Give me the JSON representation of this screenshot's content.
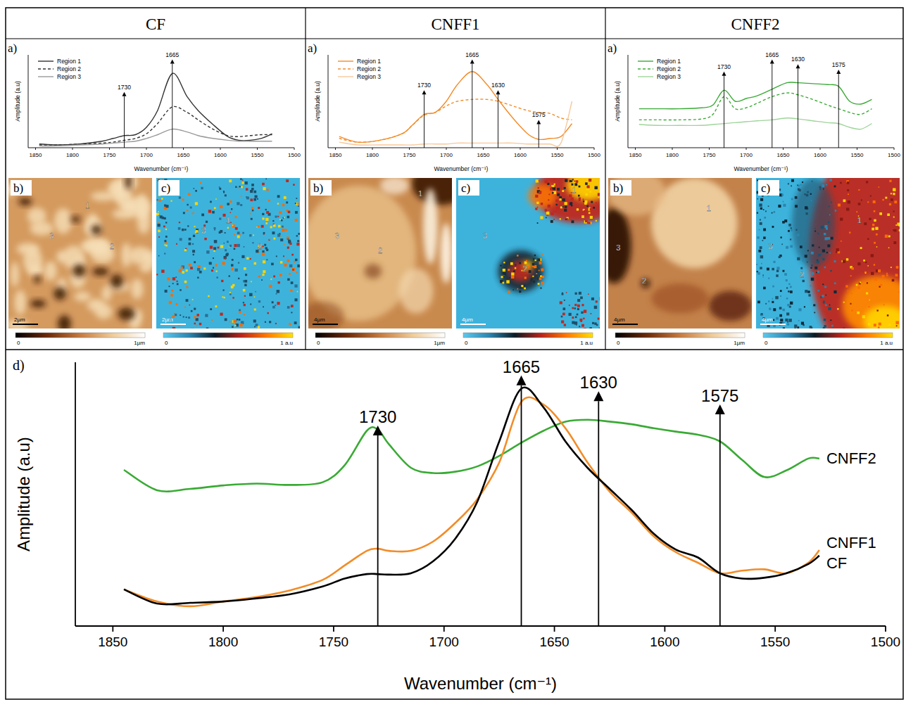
{
  "panels": [
    {
      "title": "CF",
      "height_letter": "b)",
      "ir_letter": "c)",
      "scale_bar": "2µm",
      "height_colorbar": [
        "0",
        "1µm"
      ],
      "ir_colorbar": [
        "0",
        "1 a.u"
      ],
      "region_labels": [
        "1",
        "2",
        "3"
      ]
    },
    {
      "title": "CNFF1",
      "height_letter": "b)",
      "ir_letter": "c)",
      "scale_bar": "4µm",
      "height_colorbar": [
        "0",
        "1µm"
      ],
      "ir_colorbar": [
        "0",
        "1 a.u"
      ],
      "region_labels": [
        "1",
        "2",
        "3"
      ]
    },
    {
      "title": "CNFF2",
      "height_letter": "b)",
      "ir_letter": "c)",
      "scale_bar": "4µm",
      "height_colorbar": [
        "0",
        "1µm"
      ],
      "ir_colorbar": [
        "0",
        "1 a.u"
      ],
      "region_labels": [
        "1",
        "2",
        "3"
      ]
    }
  ],
  "chart_data": [
    {
      "type": "line",
      "panel_label": "a)",
      "x_label": "Wavenumber (cm⁻¹)",
      "y_label": "Amplitude (a.u)",
      "xlim": [
        1860,
        1500
      ],
      "xticks": [
        1850,
        1800,
        1750,
        1700,
        1650,
        1600,
        1550,
        1500
      ],
      "ylim": [
        0,
        1
      ],
      "tick_labels": "x",
      "legend": "top-left",
      "x": [
        1845,
        1820,
        1790,
        1760,
        1745,
        1730,
        1715,
        1700,
        1685,
        1665,
        1645,
        1630,
        1610,
        1590,
        1575,
        1560,
        1545,
        1530
      ],
      "series": [
        {
          "name": "Region 1",
          "color": "#333333",
          "line_style": "solid",
          "values": [
            0.04,
            0.03,
            0.04,
            0.07,
            0.1,
            0.13,
            0.14,
            0.22,
            0.4,
            0.8,
            0.55,
            0.4,
            0.25,
            0.12,
            0.08,
            0.08,
            0.1,
            0.15
          ]
        },
        {
          "name": "Region 2",
          "color": "#333333",
          "line_style": "dashed",
          "values": [
            0.03,
            0.03,
            0.04,
            0.05,
            0.06,
            0.08,
            0.1,
            0.15,
            0.26,
            0.44,
            0.38,
            0.3,
            0.2,
            0.13,
            0.12,
            0.13,
            0.14,
            0.14
          ]
        },
        {
          "name": "Region 3",
          "color": "#9a9a9a",
          "line_style": "solid",
          "values": [
            0.02,
            0.02,
            0.03,
            0.04,
            0.05,
            0.06,
            0.07,
            0.1,
            0.14,
            0.2,
            0.17,
            0.13,
            0.1,
            0.08,
            0.07,
            0.07,
            0.07,
            0.07
          ]
        }
      ],
      "annotations": [
        {
          "text": "1730",
          "x": 1730,
          "y": 0.6
        },
        {
          "text": "1665",
          "x": 1665,
          "y": 0.95
        }
      ]
    },
    {
      "type": "line",
      "panel_label": "a)",
      "x_label": "Wavenumber (cm⁻¹)",
      "y_label": "Amplitude (a.u)",
      "xlim": [
        1860,
        1500
      ],
      "xticks": [
        1850,
        1800,
        1750,
        1700,
        1650,
        1600,
        1550,
        1500
      ],
      "ylim": [
        0,
        1
      ],
      "tick_labels": "x",
      "legend": "top-left",
      "x": [
        1845,
        1820,
        1790,
        1760,
        1745,
        1730,
        1715,
        1700,
        1685,
        1665,
        1645,
        1630,
        1610,
        1590,
        1575,
        1560,
        1545,
        1530
      ],
      "series": [
        {
          "name": "Region 1",
          "color": "#f28c28",
          "line_style": "solid",
          "values": [
            0.12,
            0.06,
            0.08,
            0.15,
            0.25,
            0.36,
            0.38,
            0.5,
            0.68,
            0.82,
            0.68,
            0.52,
            0.32,
            0.15,
            0.09,
            0.1,
            0.12,
            0.26
          ]
        },
        {
          "name": "Region 2",
          "color": "#f28c28",
          "line_style": "dashed",
          "values": [
            0.1,
            0.06,
            0.08,
            0.15,
            0.25,
            0.35,
            0.38,
            0.45,
            0.5,
            0.52,
            0.52,
            0.5,
            0.45,
            0.4,
            0.38,
            0.37,
            0.32,
            0.3
          ]
        },
        {
          "name": "Region 3",
          "color": "#f7c89b",
          "line_style": "solid",
          "values": [
            0.06,
            0.03,
            0.03,
            0.03,
            0.03,
            0.04,
            0.04,
            0.04,
            0.05,
            0.05,
            0.05,
            0.05,
            0.05,
            0.04,
            0.04,
            0.04,
            0.05,
            0.5
          ]
        }
      ],
      "annotations": [
        {
          "text": "1730",
          "x": 1730,
          "y": 0.62
        },
        {
          "text": "1665",
          "x": 1665,
          "y": 0.95
        },
        {
          "text": "1630",
          "x": 1630,
          "y": 0.62
        },
        {
          "text": "1575",
          "x": 1575,
          "y": 0.3
        }
      ]
    },
    {
      "type": "line",
      "panel_label": "a)",
      "x_label": "Wavenumber (cm⁻¹)",
      "y_label": "Amplitude (a.u)",
      "xlim": [
        1860,
        1500
      ],
      "xticks": [
        1850,
        1800,
        1750,
        1700,
        1650,
        1600,
        1550,
        1500
      ],
      "ylim": [
        0,
        1
      ],
      "tick_labels": "x",
      "legend": "top-left",
      "x": [
        1845,
        1820,
        1790,
        1760,
        1745,
        1730,
        1715,
        1700,
        1685,
        1665,
        1645,
        1630,
        1610,
        1590,
        1575,
        1560,
        1545,
        1530
      ],
      "series": [
        {
          "name": "Region 1",
          "color": "#3aaa35",
          "line_style": "solid",
          "values": [
            0.42,
            0.42,
            0.42,
            0.43,
            0.46,
            0.62,
            0.5,
            0.53,
            0.56,
            0.63,
            0.7,
            0.7,
            0.69,
            0.68,
            0.66,
            0.5,
            0.47,
            0.52
          ]
        },
        {
          "name": "Region 2",
          "color": "#3aaa35",
          "line_style": "dashed",
          "values": [
            0.3,
            0.3,
            0.3,
            0.31,
            0.36,
            0.55,
            0.42,
            0.43,
            0.48,
            0.55,
            0.59,
            0.57,
            0.52,
            0.46,
            0.42,
            0.38,
            0.36,
            0.42
          ]
        },
        {
          "name": "Region 3",
          "color": "#9fd49a",
          "line_style": "solid",
          "values": [
            0.25,
            0.24,
            0.24,
            0.24,
            0.25,
            0.26,
            0.27,
            0.28,
            0.29,
            0.3,
            0.32,
            0.31,
            0.29,
            0.27,
            0.26,
            0.22,
            0.2,
            0.26
          ]
        }
      ],
      "annotations": [
        {
          "text": "1730",
          "x": 1730,
          "y": 0.82
        },
        {
          "text": "1665",
          "x": 1665,
          "y": 0.95
        },
        {
          "text": "1630",
          "x": 1630,
          "y": 0.9
        },
        {
          "text": "1575",
          "x": 1575,
          "y": 0.84
        }
      ]
    },
    {
      "type": "line",
      "panel_label": "d)",
      "x_label": "Wavenumber (cm⁻¹)",
      "y_label": "Amplitude (a.u)",
      "xlim": [
        1867,
        1500
      ],
      "xticks": [
        1850,
        1800,
        1750,
        1700,
        1650,
        1600,
        1550,
        1500
      ],
      "ylim": [
        0,
        1
      ],
      "tick_labels": "x",
      "legend": "right",
      "x": [
        1845,
        1830,
        1815,
        1800,
        1785,
        1770,
        1755,
        1745,
        1735,
        1730,
        1725,
        1715,
        1705,
        1695,
        1685,
        1675,
        1665,
        1655,
        1645,
        1635,
        1625,
        1615,
        1605,
        1595,
        1585,
        1575,
        1565,
        1555,
        1545,
        1535,
        1530
      ],
      "series": [
        {
          "name": "CNFF2",
          "color": "#3aaa35",
          "line_style": "solid",
          "values": [
            0.592,
            0.515,
            0.52,
            0.533,
            0.54,
            0.535,
            0.545,
            0.61,
            0.74,
            0.745,
            0.69,
            0.6,
            0.58,
            0.585,
            0.605,
            0.645,
            0.695,
            0.74,
            0.775,
            0.782,
            0.775,
            0.765,
            0.75,
            0.737,
            0.725,
            0.7,
            0.63,
            0.565,
            0.59,
            0.635,
            0.635
          ]
        },
        {
          "name": "CNFF1",
          "color": "#f28c28",
          "line_style": "solid",
          "values": [
            0.139,
            0.093,
            0.075,
            0.093,
            0.11,
            0.135,
            0.175,
            0.23,
            0.285,
            0.293,
            0.285,
            0.285,
            0.32,
            0.39,
            0.48,
            0.62,
            0.85,
            0.84,
            0.75,
            0.62,
            0.51,
            0.43,
            0.34,
            0.28,
            0.24,
            0.2,
            0.21,
            0.215,
            0.2,
            0.24,
            0.288
          ]
        },
        {
          "name": "CF",
          "color": "#000000",
          "line_style": "solid",
          "values": [
            0.139,
            0.085,
            0.088,
            0.093,
            0.105,
            0.12,
            0.15,
            0.18,
            0.197,
            0.197,
            0.195,
            0.2,
            0.245,
            0.33,
            0.47,
            0.7,
            0.9,
            0.83,
            0.7,
            0.6,
            0.52,
            0.44,
            0.35,
            0.29,
            0.26,
            0.2,
            0.18,
            0.183,
            0.2,
            0.235,
            0.267
          ]
        }
      ],
      "annotations": [
        {
          "text": "1730",
          "x": 1730,
          "y": 0.76
        },
        {
          "text": "1665",
          "x": 1665,
          "y": 0.95
        },
        {
          "text": "1630",
          "x": 1630,
          "y": 0.89
        },
        {
          "text": "1575",
          "x": 1575,
          "y": 0.84
        }
      ]
    }
  ]
}
